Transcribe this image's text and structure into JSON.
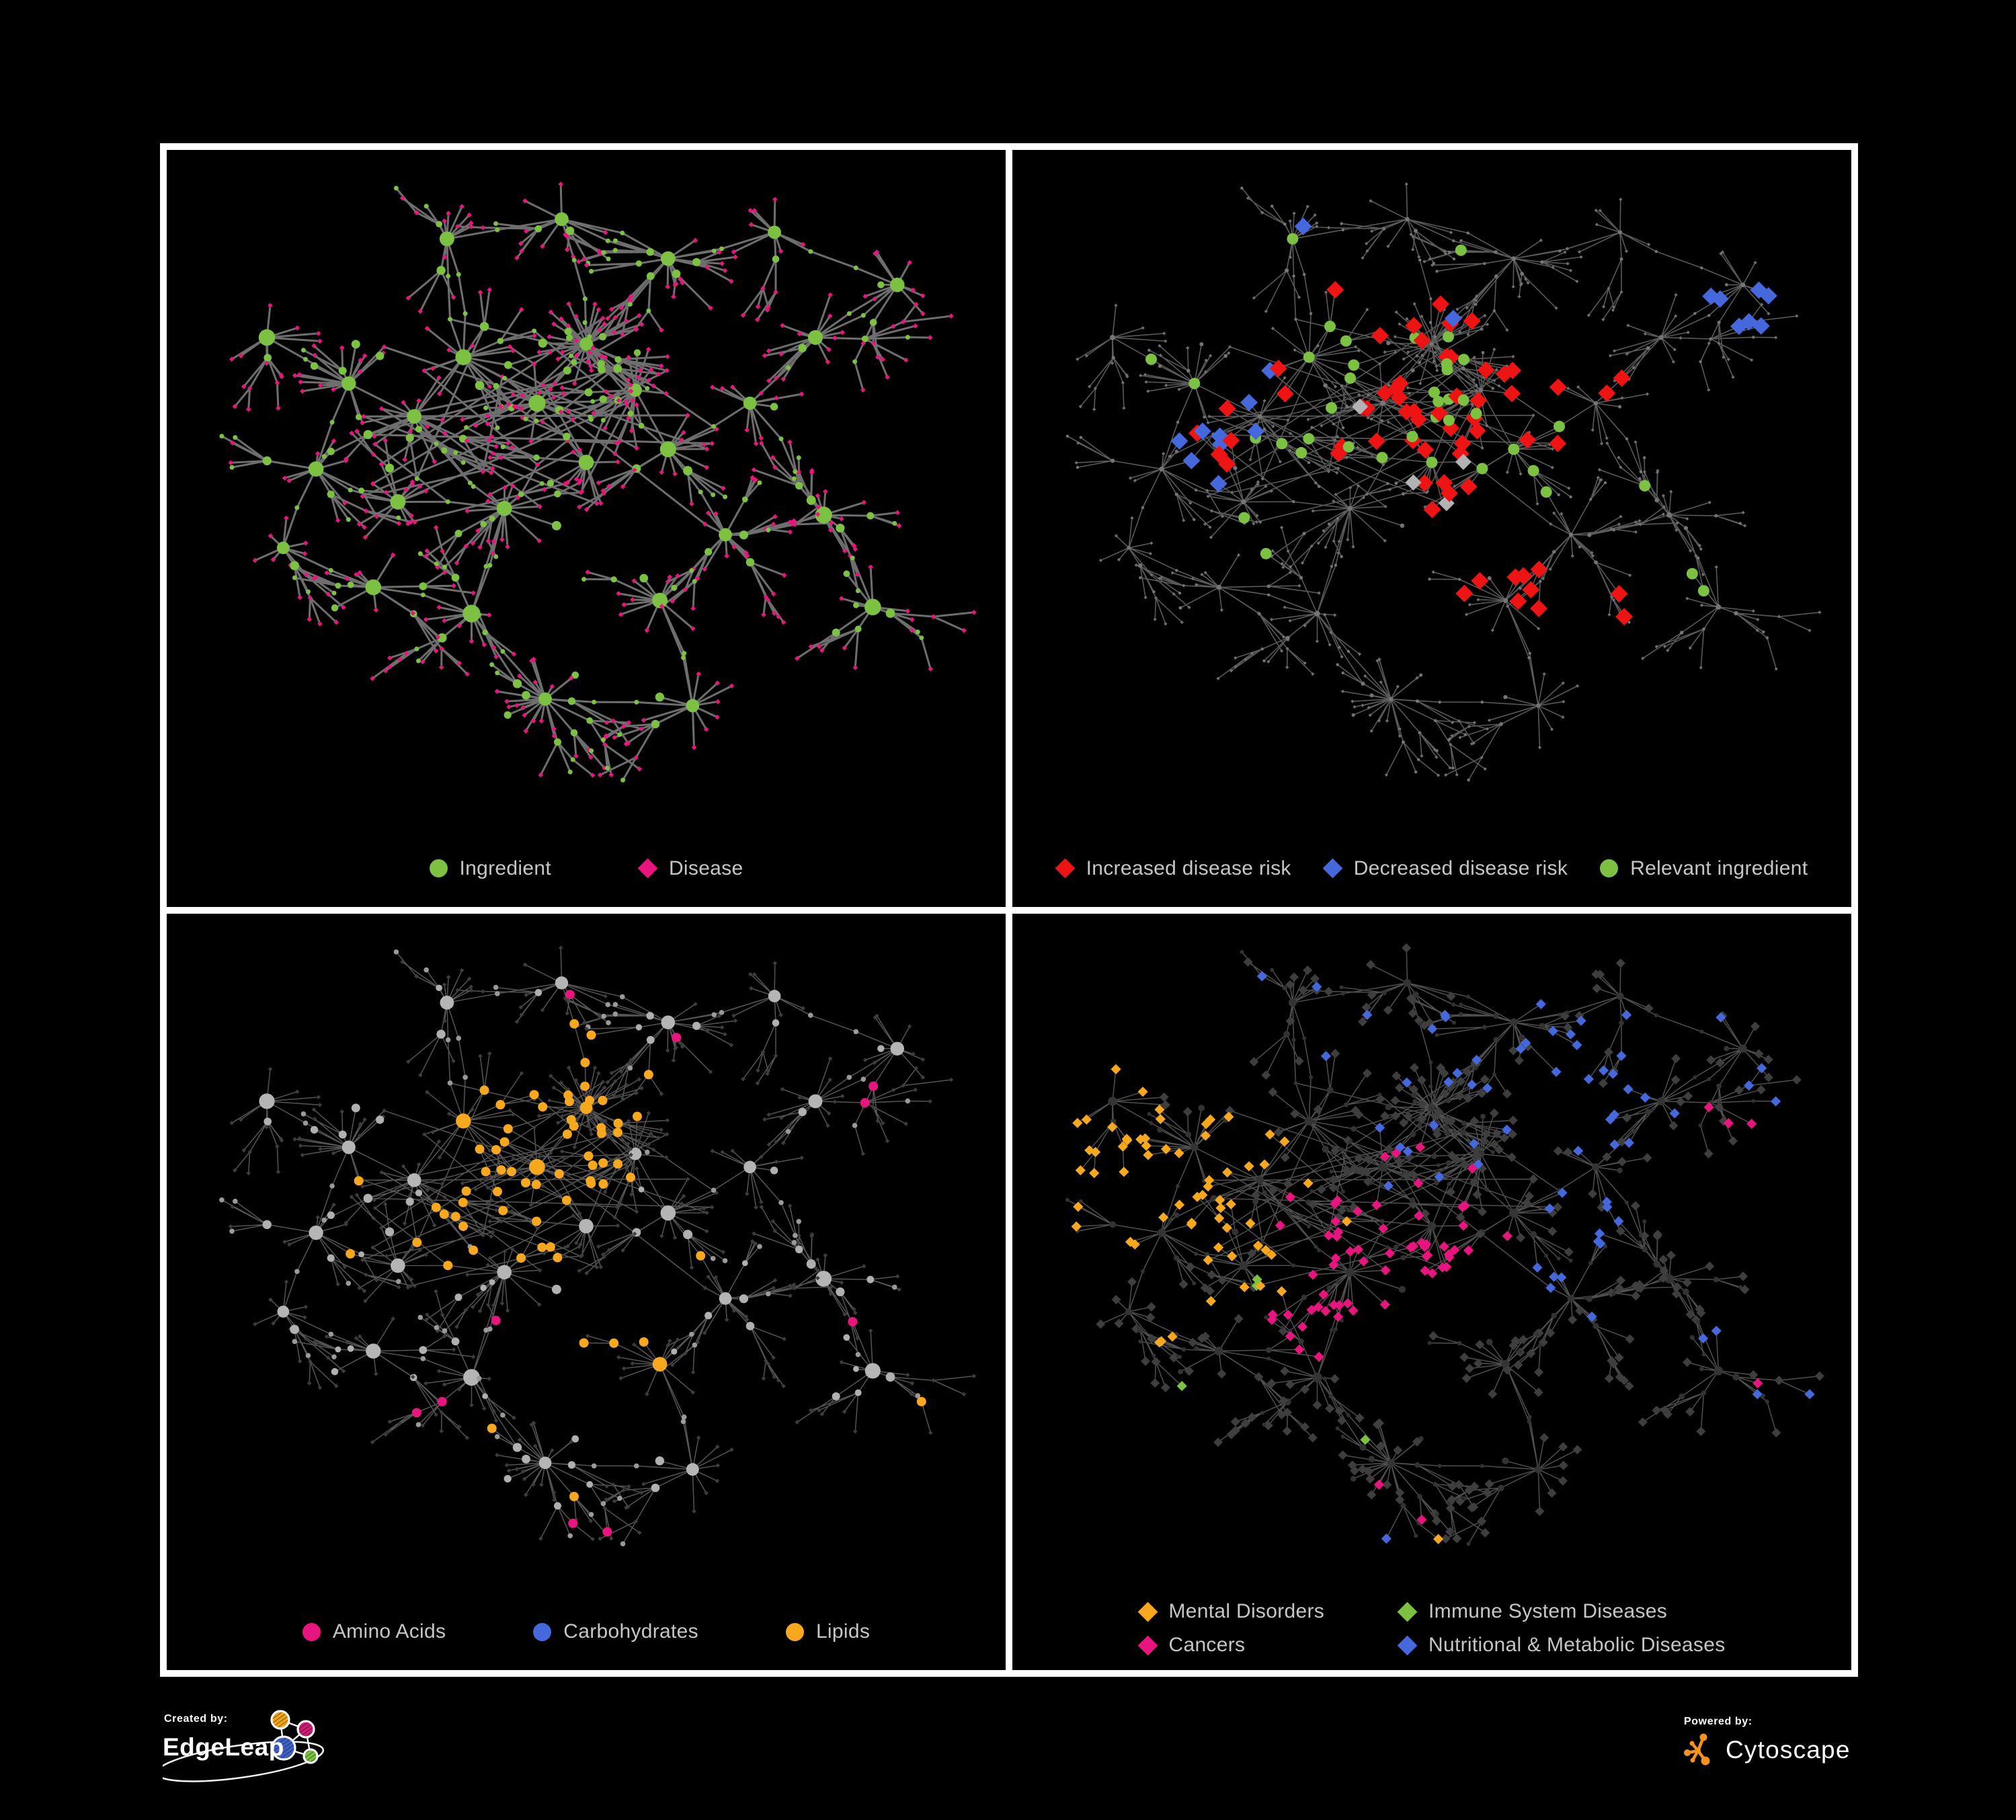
{
  "figure": {
    "background": "#000000",
    "frame_color": "#ffffff"
  },
  "panels": [
    {
      "id": "ingredient-disease",
      "legend": [
        {
          "label": "Ingredient",
          "shape": "circle",
          "color": "#7cc141"
        },
        {
          "label": "Disease",
          "shape": "diamond",
          "color": "#e8157f"
        }
      ]
    },
    {
      "id": "disease-risk",
      "legend": [
        {
          "label": "Increased disease risk",
          "shape": "diamond",
          "color": "#ef1414"
        },
        {
          "label": "Decreased disease risk",
          "shape": "diamond",
          "color": "#4569dd"
        },
        {
          "label": "Relevant ingredient",
          "shape": "circle",
          "color": "#7cc141"
        }
      ]
    },
    {
      "id": "nutrient-classes",
      "legend": [
        {
          "label": "Amino Acids",
          "shape": "circle",
          "color": "#e8157f"
        },
        {
          "label": "Carbohydrates",
          "shape": "circle",
          "color": "#4569dd"
        },
        {
          "label": "Lipids",
          "shape": "circle",
          "color": "#f8a81f"
        }
      ]
    },
    {
      "id": "disease-classes",
      "legend": [
        {
          "label": "Mental Disorders",
          "shape": "diamond",
          "color": "#f8a81f"
        },
        {
          "label": "Immune System Diseases",
          "shape": "diamond",
          "color": "#7cc141"
        },
        {
          "label": "Cancers",
          "shape": "diamond",
          "color": "#e8157f"
        },
        {
          "label": "Nutritional & Metabolic Diseases",
          "shape": "diamond",
          "color": "#4569dd"
        }
      ]
    }
  ],
  "footer": {
    "created_by": "Created by:",
    "created_brand": "EdgeLeap",
    "powered_by": "Powered by:",
    "powered_brand": "Cytoscape",
    "cytoscape_color": "#f6921e",
    "edgeleap_node_colors": [
      "#f2a515",
      "#cf1d73",
      "#4063c8",
      "#7cc141"
    ]
  },
  "network": {
    "seed": 1337,
    "leaf_mid_prob": 0.24,
    "sub_spawn_prob": 0.72,
    "subleaf_more_prob": 0.18,
    "hubs": [
      [
        0.5,
        0.28,
        30,
        0.05
      ],
      [
        0.56,
        0.35,
        16,
        0.045
      ],
      [
        0.44,
        0.37,
        18,
        0.05
      ],
      [
        0.35,
        0.3,
        14,
        0.045
      ],
      [
        0.29,
        0.39,
        16,
        0.05
      ],
      [
        0.21,
        0.34,
        18,
        0.055
      ],
      [
        0.17,
        0.47,
        10,
        0.045
      ],
      [
        0.27,
        0.52,
        14,
        0.05
      ],
      [
        0.4,
        0.53,
        20,
        0.055
      ],
      [
        0.5,
        0.46,
        12,
        0.045
      ],
      [
        0.6,
        0.44,
        14,
        0.05
      ],
      [
        0.7,
        0.37,
        10,
        0.045
      ],
      [
        0.78,
        0.27,
        12,
        0.05
      ],
      [
        0.88,
        0.19,
        10,
        0.045
      ],
      [
        0.67,
        0.57,
        12,
        0.05
      ],
      [
        0.79,
        0.54,
        10,
        0.045
      ],
      [
        0.59,
        0.67,
        12,
        0.045
      ],
      [
        0.36,
        0.69,
        10,
        0.045
      ],
      [
        0.24,
        0.65,
        12,
        0.05
      ],
      [
        0.13,
        0.59,
        8,
        0.04
      ],
      [
        0.45,
        0.82,
        26,
        0.05
      ],
      [
        0.63,
        0.83,
        10,
        0.045
      ],
      [
        0.33,
        0.12,
        10,
        0.045
      ],
      [
        0.47,
        0.09,
        8,
        0.04
      ],
      [
        0.6,
        0.15,
        12,
        0.045
      ],
      [
        0.11,
        0.27,
        8,
        0.045
      ],
      [
        0.85,
        0.68,
        8,
        0.045
      ],
      [
        0.73,
        0.11,
        8,
        0.04
      ]
    ],
    "mesh": {
      "xmin": 0.22,
      "xmax": 0.66,
      "ymin": 0.24,
      "ymax": 0.56,
      "count": 38
    },
    "render": [
      {
        "edge": {
          "color": "#7a7a7a",
          "w": 3.0,
          "op": 0.9
        },
        "node": {
          "hub": [
            "circle",
            "#7cc141",
            9
          ],
          "mid": [
            "circle",
            "#7cc141",
            5.4
          ],
          "chain": [
            "circle",
            "#7cc141",
            3.5
          ],
          "leaf": [
            "diamond",
            "#e8157f",
            3.8
          ]
        },
        "rules": []
      },
      {
        "edge": {
          "color": "#696969",
          "w": 1.6,
          "op": 0.85
        },
        "node": {
          "hub": [
            "circle",
            "#757575",
            2.9
          ],
          "mid": [
            "circle",
            "#757575",
            2.5
          ],
          "chain": [
            "circle",
            "#757575",
            2.2
          ],
          "leaf": [
            "diamond",
            "#6f6f6f",
            2.6
          ]
        },
        "rules": [
          {
            "on": "leaf",
            "shape": "diamond",
            "color": "#ef1414",
            "size": 13,
            "base": 0.004,
            "gain": 0.45,
            "foci": [
              [
                0.3,
                0.33,
                0.07
              ],
              [
                0.52,
                0.4,
                0.09
              ],
              [
                0.57,
                0.62,
                0.05
              ],
              [
                0.73,
                0.74,
                0.04
              ]
            ]
          },
          {
            "on": "leaf",
            "shape": "diamond",
            "color": "#4569dd",
            "size": 13,
            "base": 0.002,
            "gain": 1.0,
            "foci": [
              [
                0.26,
                0.4,
                0.05
              ],
              [
                0.88,
                0.2,
                0.035
              ]
            ]
          },
          {
            "on": "leaf",
            "shape": "diamond",
            "color": "#b3b3b3",
            "size": 12,
            "base": 0.003,
            "gain": 0.2,
            "foci": [
              [
                0.24,
                0.32,
                0.05
              ],
              [
                0.5,
                0.43,
                0.06
              ],
              [
                0.66,
                0.7,
                0.04
              ]
            ]
          },
          {
            "on": "circle",
            "shape": "circle",
            "color": "#7cc141",
            "size": 8.5,
            "base": 0.012,
            "gain": 0.32,
            "foci": [
              [
                0.35,
                0.35,
                0.12
              ],
              [
                0.55,
                0.42,
                0.12
              ],
              [
                0.76,
                0.62,
                0.06
              ]
            ]
          }
        ]
      },
      {
        "edge": {
          "color": "#9b9b9b",
          "w": 1.5,
          "op": 0.55
        },
        "node": {
          "hub": [
            "circle",
            "#b5b5b5",
            8.5
          ],
          "mid": [
            "circle",
            "#b0b0b0",
            5.4
          ],
          "chain": [
            "circle",
            "#9a9a9a",
            3.8
          ],
          "leaf": [
            "diamond",
            "#3d3d3d",
            3.3
          ]
        },
        "rules": [
          {
            "on": "circle",
            "shape": "circle",
            "color": "#f8a81f",
            "minsize": 7,
            "base": 0.025,
            "gain": 2.2,
            "foci": [
              [
                0.47,
                0.3,
                0.06
              ],
              [
                0.41,
                0.43,
                0.06
              ],
              [
                0.52,
                0.64,
                0.05
              ]
            ]
          },
          {
            "on": "circle",
            "shape": "circle",
            "color": "#4569dd",
            "minsize": 6.5,
            "base": 0.012,
            "gain": 1.2,
            "foci": [
              [
                0.45,
                0.29,
                0.045
              ]
            ]
          },
          {
            "on": "circle",
            "shape": "circle",
            "color": "#e8157f",
            "minsize": 7,
            "base": 0.07,
            "gain": 0,
            "foci": []
          }
        ]
      },
      {
        "edge": {
          "color": "#585858",
          "w": 1.5,
          "op": 0.9
        },
        "node": {
          "hub": [
            "circle",
            "#343434",
            5
          ],
          "mid": [
            "circle",
            "#333333",
            4
          ],
          "chain": [
            "circle",
            "#323232",
            3
          ],
          "leaf": [
            "diamond",
            "#3e3e3e",
            7
          ]
        },
        "rules": [
          {
            "on": "leaf",
            "shape": "diamond",
            "color": "#f8a81f",
            "size": 7.6,
            "base": 0.006,
            "gain": 1.7,
            "foci": [
              [
                0.17,
                0.42,
                0.09
              ],
              [
                0.1,
                0.33,
                0.05
              ]
            ]
          },
          {
            "on": "leaf",
            "shape": "diamond",
            "color": "#e8157f",
            "size": 7.6,
            "base": 0.004,
            "gain": 1.2,
            "foci": [
              [
                0.45,
                0.5,
                0.08
              ],
              [
                0.38,
                0.58,
                0.05
              ],
              [
                0.92,
                0.33,
                0.04
              ]
            ]
          },
          {
            "on": "leaf",
            "shape": "diamond",
            "color": "#4569dd",
            "size": 7.6,
            "base": 0.03,
            "gain": 0.55,
            "foci": [
              [
                0.63,
                0.52,
                0.06
              ],
              [
                0.76,
                0.22,
                0.12
              ],
              [
                0.55,
                0.08,
                0.1
              ],
              [
                0.88,
                0.62,
                0.05
              ]
            ]
          },
          {
            "on": "leaf",
            "shape": "diamond",
            "color": "#7cc141",
            "size": 7.6,
            "base": 0.015,
            "gain": 0,
            "foci": []
          }
        ]
      }
    ]
  }
}
